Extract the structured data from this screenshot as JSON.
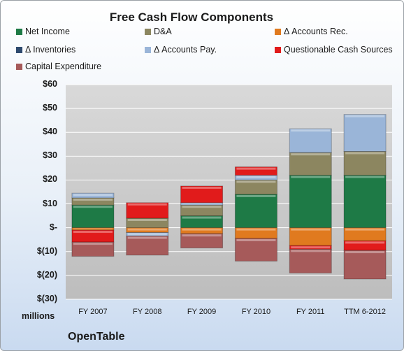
{
  "chart_data": {
    "type": "bar",
    "stacked": true,
    "title": "Free Cash Flow Components",
    "categories": [
      "FY 2007",
      "FY 2008",
      "FY 2009",
      "FY 2010",
      "FY 2011",
      "TTM 6-2012"
    ],
    "ylim": [
      -30,
      60
    ],
    "yticks": [
      {
        "value": 60,
        "label": "$60"
      },
      {
        "value": 50,
        "label": "$50"
      },
      {
        "value": 40,
        "label": "$40"
      },
      {
        "value": 30,
        "label": "$30"
      },
      {
        "value": 20,
        "label": "$20"
      },
      {
        "value": 10,
        "label": "$10"
      },
      {
        "value": 0,
        "label": "$-"
      },
      {
        "value": -10,
        "label": "$(10)"
      },
      {
        "value": -20,
        "label": "$(20)"
      },
      {
        "value": -30,
        "label": "$(30)"
      }
    ],
    "unit_label": "millions",
    "grid": true,
    "legend_position": "top",
    "series": [
      {
        "name": "Net Income",
        "color": "#1e7a46",
        "values": [
          9.5,
          0,
          5,
          14,
          22,
          22
        ]
      },
      {
        "name": "D&A",
        "color": "#8c8660",
        "values": [
          3,
          4,
          4.5,
          6,
          9.5,
          10
        ]
      },
      {
        "name": "Δ Accounts Rec.",
        "color": "#e07a1f",
        "values": [
          -1,
          -2,
          -2.5,
          -4.5,
          -7.5,
          -5.5
        ]
      },
      {
        "name": "Δ Inventories",
        "color": "#2e4a6e",
        "values": [
          0,
          0,
          0,
          0,
          0,
          0
        ]
      },
      {
        "name": "Δ Accounts Pay.",
        "color": "#9ab5d8",
        "values": [
          2,
          -1.5,
          1,
          2,
          10,
          15.5
        ]
      },
      {
        "name": "Questionable Cash Sources",
        "color": "#e11b1b",
        "values": [
          -5,
          6.5,
          7,
          3.5,
          -1.5,
          -4
        ]
      },
      {
        "name": "Capital Expenditure",
        "color": "#a65a5a",
        "values": [
          -6,
          -8,
          -6,
          -9.5,
          -10,
          -12
        ]
      }
    ]
  },
  "company": "OpenTable"
}
